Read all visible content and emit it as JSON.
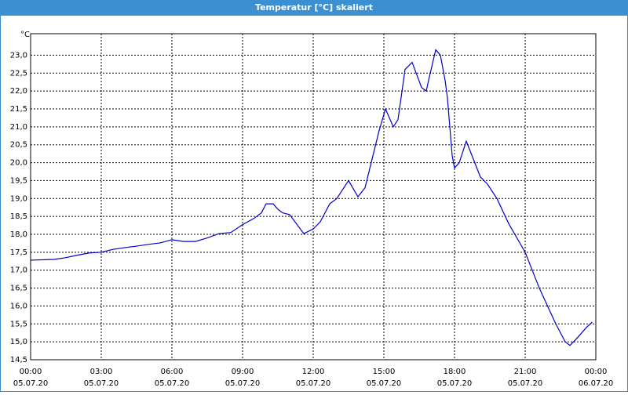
{
  "chart_data": {
    "type": "line",
    "title": "Temperatur [°C] skaliert",
    "y_label": "°C",
    "x": [
      0,
      1,
      1.5,
      2,
      2.5,
      3,
      3.5,
      4,
      4.5,
      5,
      5.5,
      6,
      6.5,
      7,
      7.5,
      8,
      8.5,
      9,
      9.5,
      9.8,
      10,
      10.3,
      10.5,
      10.7,
      11,
      11.6,
      12,
      12.3,
      12.7,
      13,
      13.5,
      13.9,
      14.2,
      14.8,
      15.07,
      15.4,
      15.6,
      15.9,
      16.2,
      16.6,
      16.8,
      16.9,
      17.2,
      17.4,
      17.6,
      17.7,
      17.9,
      18,
      18.2,
      18.5,
      18.8,
      19.1,
      19.4,
      19.8,
      20.3,
      21,
      21.6,
      22.3,
      22.7,
      22.9,
      23.2,
      23.6,
      23.85
    ],
    "series": [
      {
        "name": "Temperatur",
        "color": "#0000c8",
        "values": [
          17.28,
          17.3,
          17.35,
          17.42,
          17.48,
          17.5,
          17.58,
          17.63,
          17.67,
          17.72,
          17.76,
          17.85,
          17.8,
          17.8,
          17.9,
          18.02,
          18.05,
          18.27,
          18.45,
          18.6,
          18.85,
          18.85,
          18.7,
          18.6,
          18.55,
          18.02,
          18.15,
          18.35,
          18.85,
          19.0,
          19.5,
          19.05,
          19.3,
          20.9,
          21.5,
          21.0,
          21.2,
          22.6,
          22.8,
          22.1,
          22.0,
          22.3,
          23.15,
          23.0,
          22.3,
          21.8,
          20.2,
          19.85,
          20.0,
          20.6,
          20.1,
          19.6,
          19.4,
          19.0,
          18.3,
          17.5,
          16.5,
          15.5,
          15.0,
          14.9,
          15.1,
          15.4,
          15.55
        ]
      }
    ],
    "xlim": [
      0,
      24
    ],
    "ylim": [
      14.5,
      23.6
    ],
    "xticks": [
      {
        "value": 0,
        "label": "00:00",
        "date": "05.07.20"
      },
      {
        "value": 3,
        "label": "03:00",
        "date": "05.07.20"
      },
      {
        "value": 6,
        "label": "06:00",
        "date": "05.07.20"
      },
      {
        "value": 9,
        "label": "09:00",
        "date": "05.07.20"
      },
      {
        "value": 12,
        "label": "12:00",
        "date": "05.07.20"
      },
      {
        "value": 15,
        "label": "15:00",
        "date": "05.07.20"
      },
      {
        "value": 18,
        "label": "18:00",
        "date": "05.07.20"
      },
      {
        "value": 21,
        "label": "21:00",
        "date": "05.07.20"
      },
      {
        "value": 24,
        "label": "00:00",
        "date": "06.07.20"
      }
    ],
    "yticks": [
      {
        "value": 14.5,
        "label": "14,5"
      },
      {
        "value": 15,
        "label": "15,0"
      },
      {
        "value": 15.5,
        "label": "15,5"
      },
      {
        "value": 16,
        "label": "16,0"
      },
      {
        "value": 16.5,
        "label": "16,5"
      },
      {
        "value": 17,
        "label": "17,0"
      },
      {
        "value": 17.5,
        "label": "17,5"
      },
      {
        "value": 18,
        "label": "18,0"
      },
      {
        "value": 18.5,
        "label": "18,5"
      },
      {
        "value": 19,
        "label": "19,0"
      },
      {
        "value": 19.5,
        "label": "19,5"
      },
      {
        "value": 20,
        "label": "20,0"
      },
      {
        "value": 20.5,
        "label": "20,5"
      },
      {
        "value": 21,
        "label": "21,0"
      },
      {
        "value": 21.5,
        "label": "21,5"
      },
      {
        "value": 22,
        "label": "22,0"
      },
      {
        "value": 22.5,
        "label": "22,5"
      },
      {
        "value": 23,
        "label": "23,0"
      }
    ],
    "grid": true
  }
}
